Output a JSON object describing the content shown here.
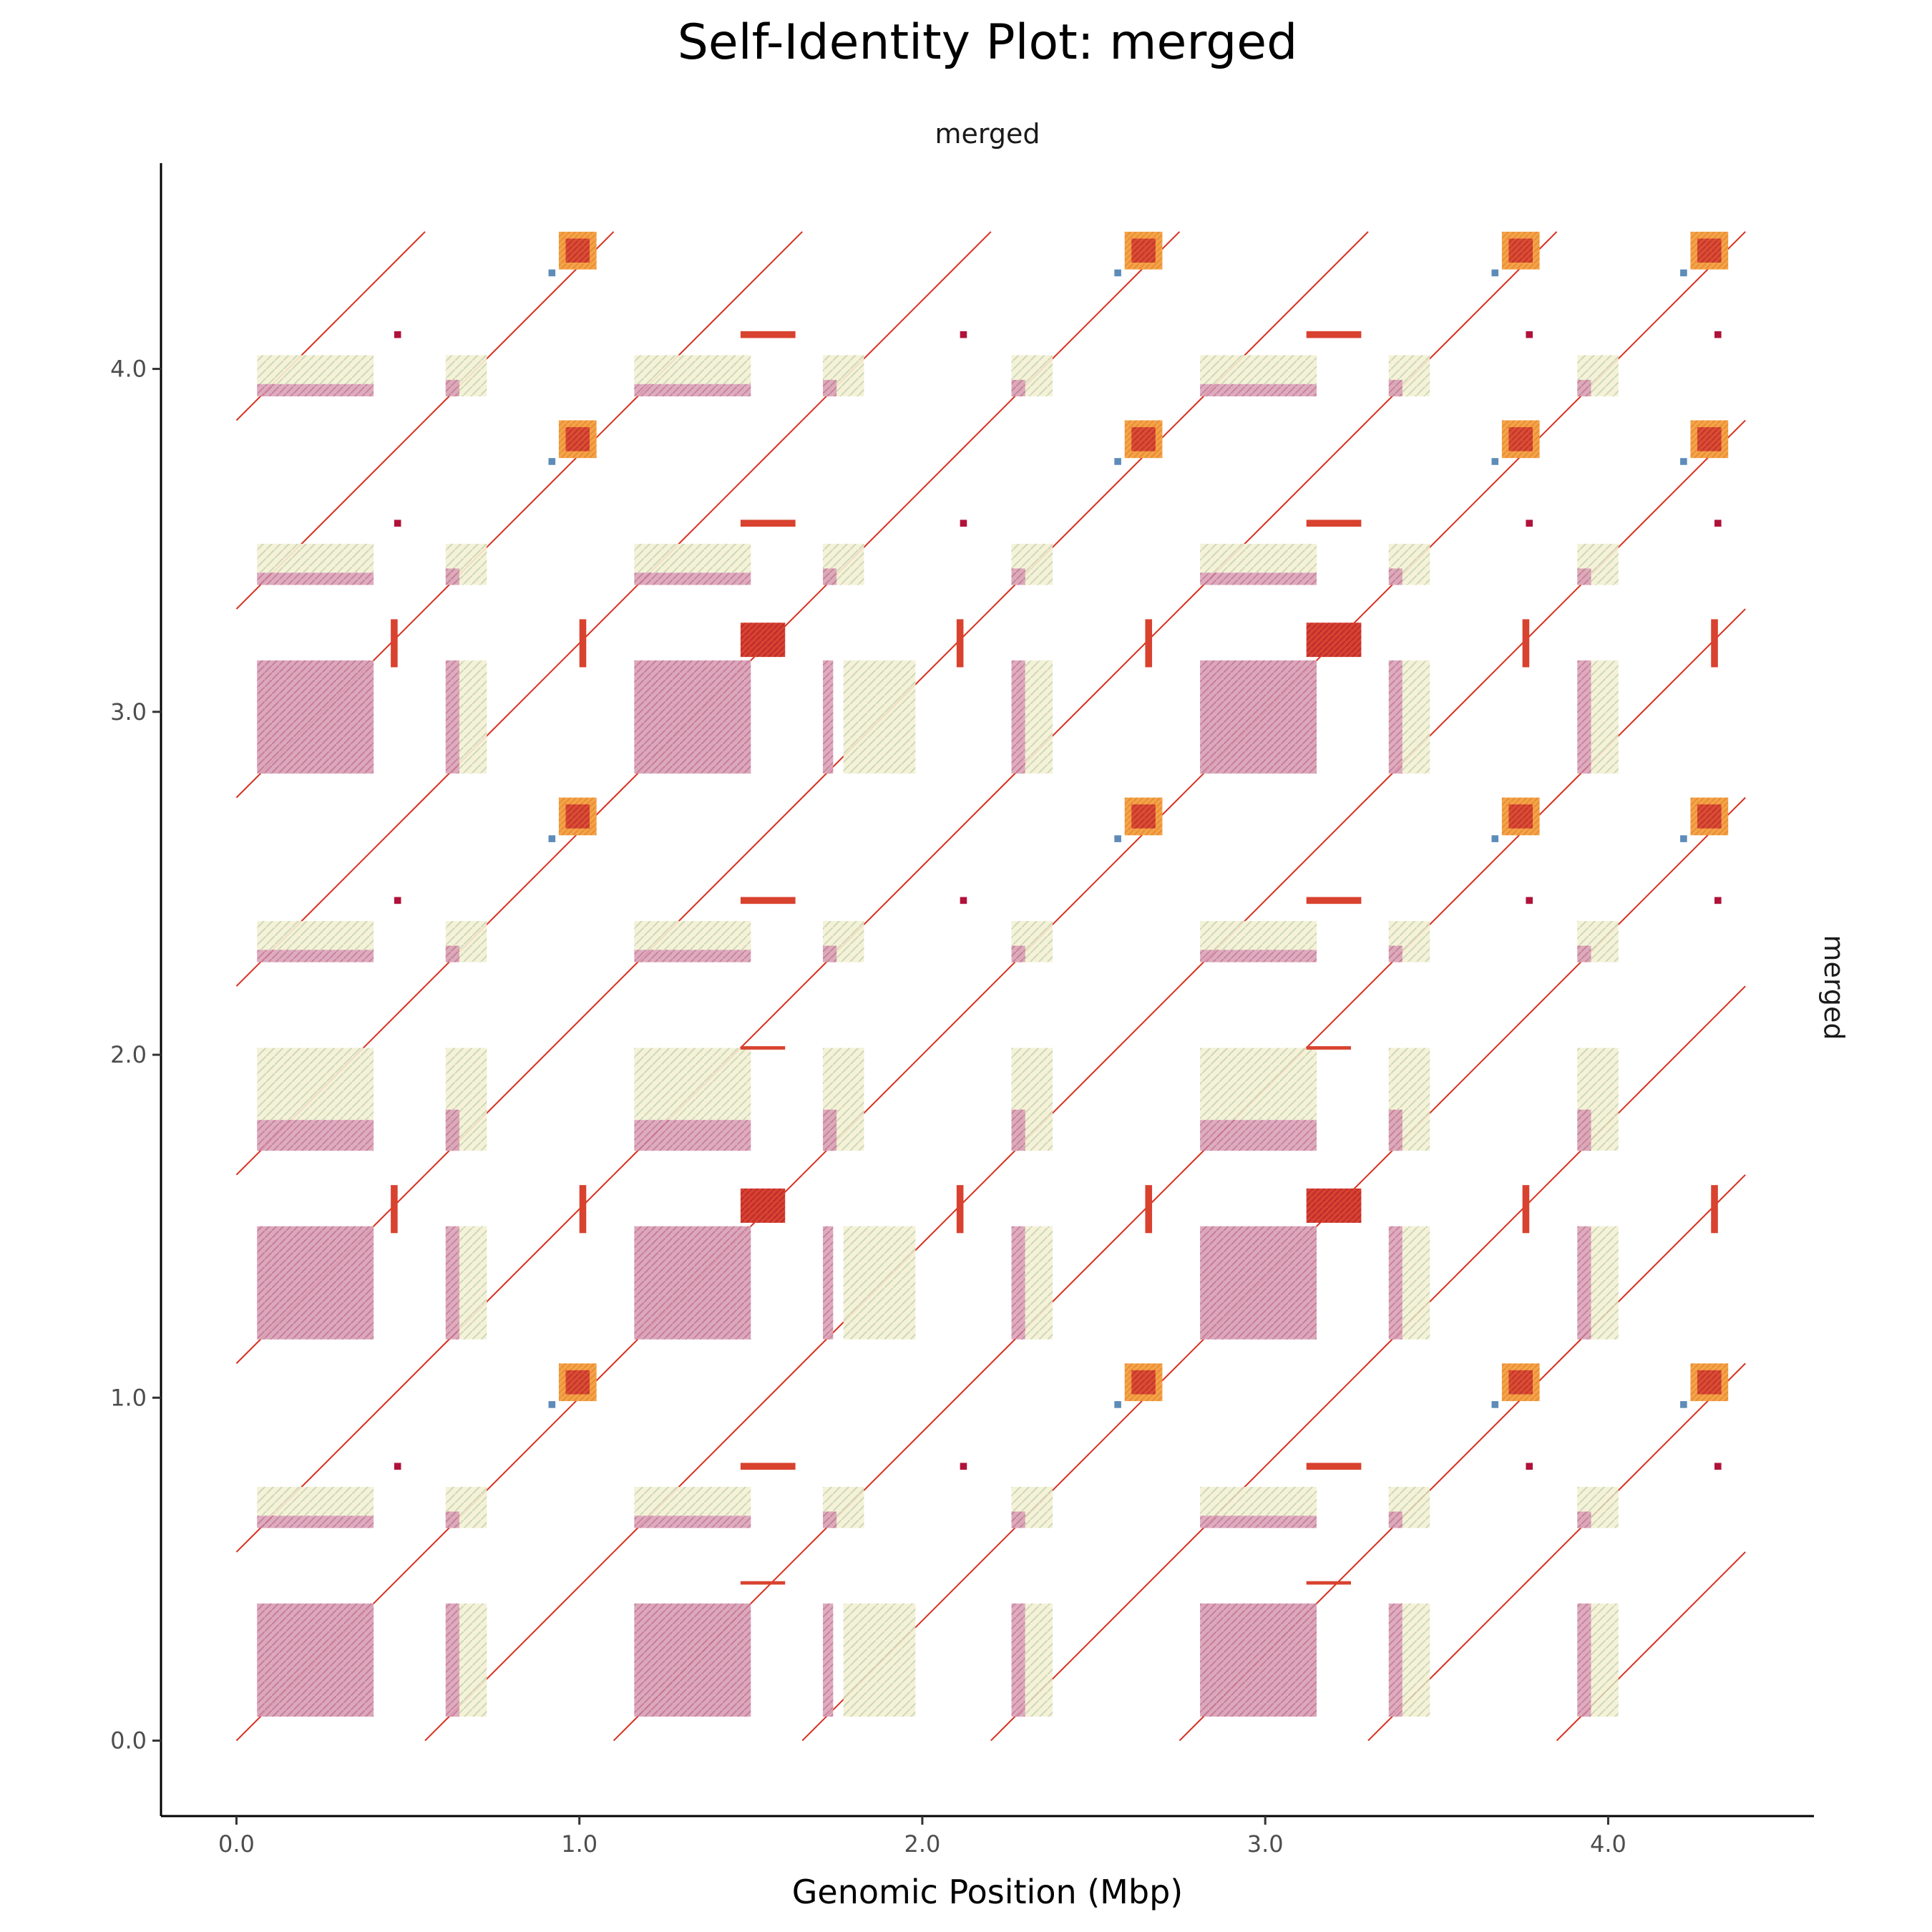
{
  "chart_data": {
    "type": "heatmap",
    "title": "Self-Identity Plot: merged",
    "facet_top": "merged",
    "facet_right": "merged",
    "xlabel": "Genomic Position (Mbp)",
    "ylabel": "",
    "xlim": [
      -0.22,
      4.6
    ],
    "ylim": [
      -0.22,
      4.6
    ],
    "x_ticks": [
      0.0,
      1.0,
      2.0,
      3.0,
      4.0
    ],
    "y_ticks": [
      0.0,
      1.0,
      2.0,
      3.0,
      4.0
    ],
    "x_tick_labels": [
      "0.0",
      "1.0",
      "2.0",
      "3.0",
      "4.0"
    ],
    "y_tick_labels": [
      "0.0",
      "1.0",
      "2.0",
      "3.0",
      "4.0"
    ],
    "colors": {
      "pink_block": "#d9a3b8",
      "pale_block": "#f4f1d4",
      "red_block": "#d8422f",
      "dark_red": "#b0123a",
      "orange_block": "#f4a447",
      "blue_block": "#5e8cb8",
      "diagonal": "#d7301f"
    },
    "segments": [
      {
        "start": 0.0,
        "end": 0.55
      },
      {
        "start": 0.55,
        "end": 1.1
      },
      {
        "start": 1.1,
        "end": 1.65
      },
      {
        "start": 1.65,
        "end": 2.2
      },
      {
        "start": 2.2,
        "end": 2.75
      },
      {
        "start": 2.75,
        "end": 3.3
      },
      {
        "start": 3.3,
        "end": 3.85
      },
      {
        "start": 3.85,
        "end": 4.4
      }
    ],
    "y_bands": [
      {
        "y0": 0.0,
        "y1": 0.55,
        "kind": "A"
      },
      {
        "y0": 0.55,
        "y1": 1.1,
        "kind": "B"
      },
      {
        "y0": 1.1,
        "y1": 1.65,
        "kind": "C"
      },
      {
        "y0": 1.65,
        "y1": 2.2,
        "kind": "D"
      },
      {
        "y0": 2.2,
        "y1": 2.75,
        "kind": "B2"
      },
      {
        "y0": 2.75,
        "y1": 3.3,
        "kind": "C"
      },
      {
        "y0": 3.3,
        "y1": 3.85,
        "kind": "B"
      },
      {
        "y0": 3.85,
        "y1": 4.4,
        "kind": "B"
      }
    ]
  }
}
